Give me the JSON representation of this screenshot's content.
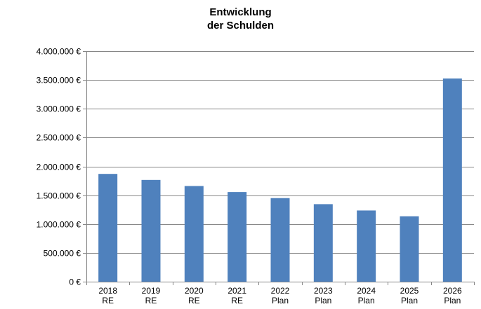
{
  "chart_data": {
    "type": "bar",
    "title": [
      "Entwicklung",
      "der Schulden"
    ],
    "categories": [
      [
        "2018",
        "RE"
      ],
      [
        "2019",
        "RE"
      ],
      [
        "2020",
        "RE"
      ],
      [
        "2021",
        "RE"
      ],
      [
        "2022",
        "Plan"
      ],
      [
        "2023",
        "Plan"
      ],
      [
        "2024",
        "Plan"
      ],
      [
        "2025",
        "Plan"
      ],
      [
        "2026",
        "Plan"
      ]
    ],
    "values": [
      1870000,
      1765000,
      1660000,
      1555000,
      1450000,
      1345000,
      1235000,
      1135000,
      3525000
    ],
    "ylim": [
      0,
      4000000
    ],
    "y_ticks": [
      0,
      500000,
      1000000,
      1500000,
      2000000,
      2500000,
      3000000,
      3500000,
      4000000
    ],
    "y_tick_labels": [
      "0 €",
      "500.000 €",
      "1.000.000 €",
      "1.500.000 €",
      "2.000.000 €",
      "2.500.000 €",
      "3.000.000 €",
      "3.500.000 €",
      "4.000.000 €"
    ],
    "grid": true,
    "legend": false,
    "bar_color": "#4F81BD",
    "grid_color": "#868686",
    "axis_color": "#868686"
  }
}
